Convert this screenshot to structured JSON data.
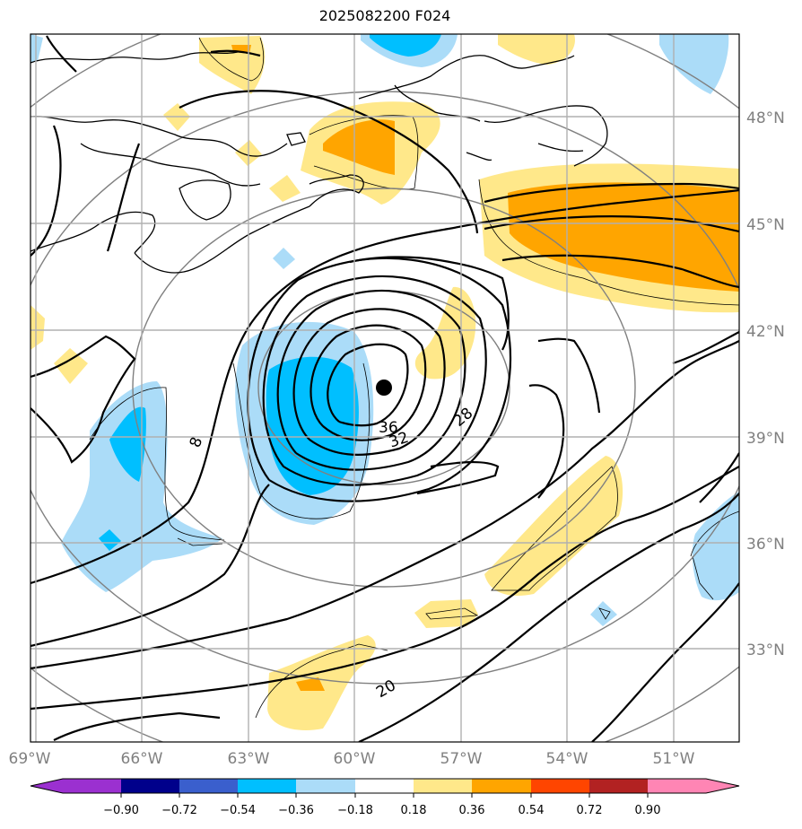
{
  "title": "2025082200 F024",
  "map": {
    "lon_labels": [
      "69°W",
      "66°W",
      "63°W",
      "60°W",
      "57°W",
      "54°W",
      "51°W"
    ],
    "lat_labels": [
      "48°N",
      "45°N",
      "42°N",
      "39°N",
      "36°N",
      "33°N"
    ],
    "contour_labels": [
      "36",
      "32",
      "28",
      "8",
      "20"
    ],
    "colors": {
      "pos_light": "#ffe88a",
      "pos_mid": "#ffa500",
      "neg_light": "#abdcf8",
      "neg_mid": "#00bfff",
      "coast": "#000000",
      "grid": "#b0b0b0",
      "range_ring": "#808080"
    }
  },
  "colorbar": {
    "tick_labels": [
      "−0.90",
      "−0.72",
      "−0.54",
      "−0.36",
      "−0.18",
      "0.18",
      "0.36",
      "0.54",
      "0.72",
      "0.90"
    ],
    "colors": [
      "#9b30d0",
      "#00008b",
      "#3a5fcd",
      "#00bfff",
      "#abdcf8",
      "#ffffff",
      "#ffe88a",
      "#ffa500",
      "#ff4500",
      "#b22222",
      "#ff85b4"
    ]
  }
}
